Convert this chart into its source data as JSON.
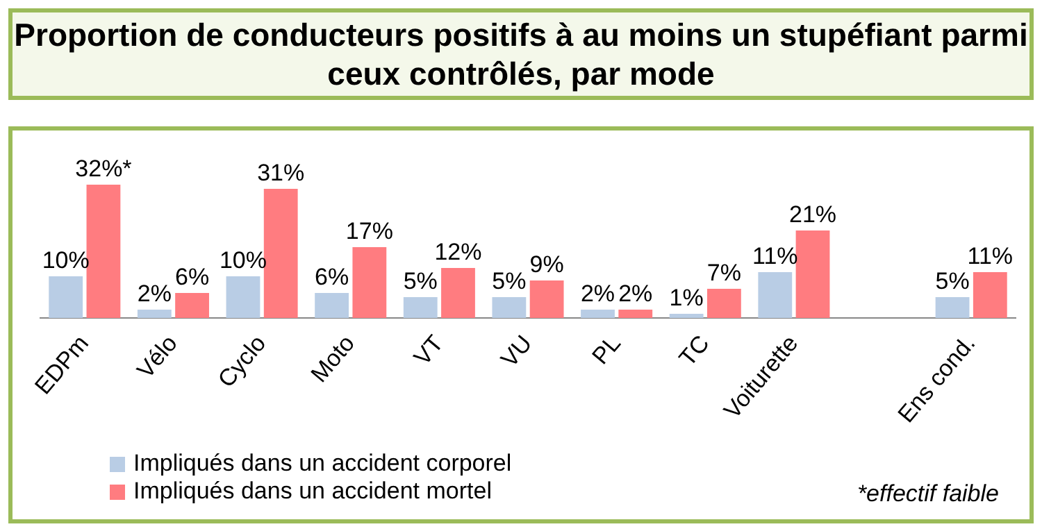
{
  "chart_data": {
    "type": "bar",
    "title": "Proportion de conducteurs positifs à au moins un stupéfiant parmi ceux contrôlés, par mode",
    "categories": [
      "EDPm",
      "Vélo",
      "Cyclo",
      "Moto",
      "VT",
      "VU",
      "PL",
      "TC",
      "Voiturette",
      null,
      "Ens cond."
    ],
    "series": [
      {
        "name": "Impliqués dans un accident corporel",
        "color": "#b9cde5",
        "values": [
          10,
          2,
          10,
          6,
          5,
          5,
          2,
          1,
          11,
          null,
          5
        ],
        "value_labels": [
          "10%",
          "2%",
          "10%",
          "6%",
          "5%",
          "5%",
          "2%",
          "1%",
          "11%",
          null,
          "5%"
        ]
      },
      {
        "name": "Impliqués dans un accident mortel",
        "color": "#ff7c80",
        "values": [
          32,
          6,
          31,
          17,
          12,
          9,
          2,
          7,
          21,
          null,
          11
        ],
        "value_labels": [
          "32%*",
          "6%",
          "31%",
          "17%",
          "12%",
          "9%",
          "2%",
          "7%",
          "21%",
          null,
          "11%"
        ]
      }
    ],
    "annotations": [
      "*effectif faible"
    ],
    "legend": "bottom left",
    "grid": false
  }
}
